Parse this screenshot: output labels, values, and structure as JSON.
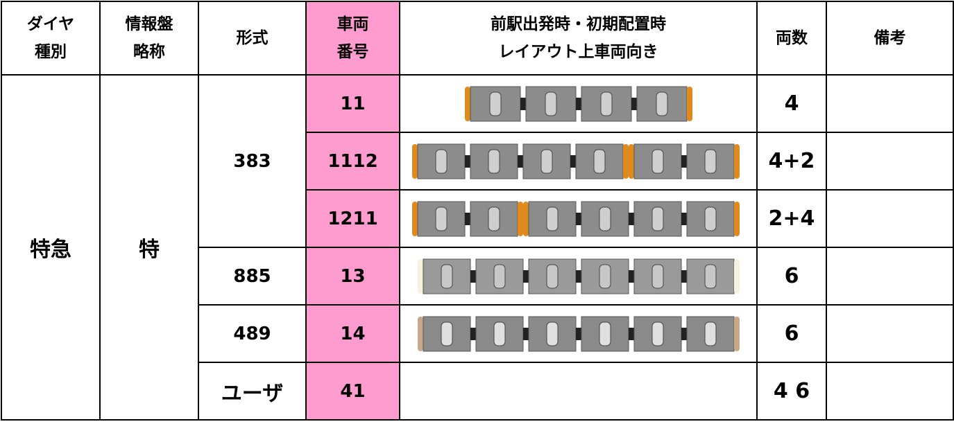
{
  "table": {
    "header": [
      [
        "ダイヤ",
        "種別"
      ],
      [
        "情報盤",
        "略称"
      ],
      [
        "形式"
      ],
      [
        "車両",
        "番号"
      ],
      [
        "前駅出発時・初期配置時",
        "レイアウト上車両向き"
      ],
      [
        "両数"
      ],
      [
        "備考"
      ]
    ],
    "diagram_type": "特急",
    "board_abbr": "特",
    "models": [
      "383",
      "885",
      "489",
      "ユーザ"
    ],
    "rows": [
      {
        "number": "11",
        "cars": "4"
      },
      {
        "number": "1112",
        "cars": "4+2"
      },
      {
        "number": "1211",
        "cars": "2+4"
      },
      {
        "number": "13",
        "cars": "6"
      },
      {
        "number": "14",
        "cars": "6"
      },
      {
        "number": "41",
        "cars": "4 6"
      }
    ]
  }
}
